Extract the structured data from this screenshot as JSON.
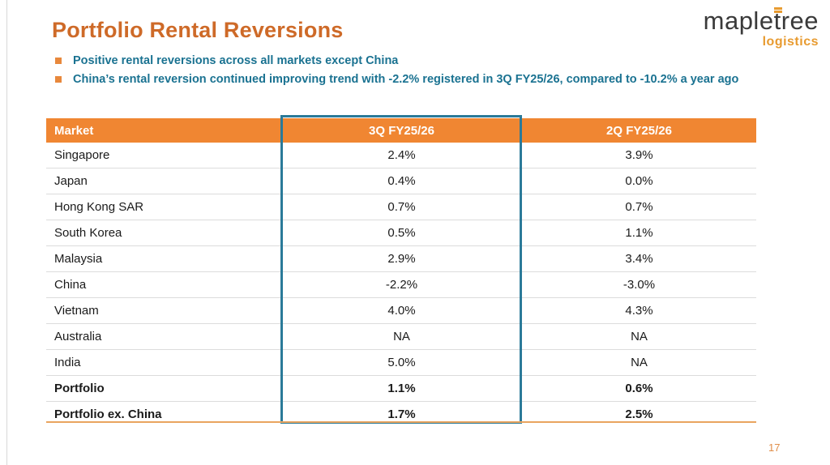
{
  "slide": {
    "title": "Portfolio Rental Reversions",
    "bullets": [
      "Positive rental reversions across all markets except China",
      "China’s rental reversion continued improving trend with -2.2% registered in 3Q FY25/26, compared to -10.2% a year ago"
    ],
    "page_number": "17"
  },
  "logo": {
    "part1": "maple",
    "part2": "t",
    "part3": "ree",
    "sub": "logistics"
  },
  "table": {
    "columns": [
      "Market",
      "3Q FY25/26",
      "2Q FY25/26"
    ],
    "rows": [
      {
        "market": "Singapore",
        "q3": "2.4%",
        "q2": "3.9%",
        "bold": false
      },
      {
        "market": "Japan",
        "q3": "0.4%",
        "q2": "0.0%",
        "bold": false
      },
      {
        "market": "Hong Kong SAR",
        "q3": "0.7%",
        "q2": "0.7%",
        "bold": false
      },
      {
        "market": "South Korea",
        "q3": "0.5%",
        "q2": "1.1%",
        "bold": false
      },
      {
        "market": "Malaysia",
        "q3": "2.9%",
        "q2": "3.4%",
        "bold": false
      },
      {
        "market": "China",
        "q3": "-2.2%",
        "q2": "-3.0%",
        "bold": false
      },
      {
        "market": "Vietnam",
        "q3": "4.0%",
        "q2": "4.3%",
        "bold": false
      },
      {
        "market": "Australia",
        "q3": "NA",
        "q2": "NA",
        "bold": false
      },
      {
        "market": "India",
        "q3": "5.0%",
        "q2": "NA",
        "bold": false
      },
      {
        "market": "Portfolio",
        "q3": "1.1%",
        "q2": "0.6%",
        "bold": true
      },
      {
        "market": "Portfolio ex. China",
        "q3": "1.7%",
        "q2": "2.5%",
        "bold": true
      }
    ]
  },
  "colors": {
    "title_orange": "#ce6a28",
    "header_orange": "#f08632",
    "bullet_square_orange": "#e8883c",
    "bullet_text_teal": "#1a7291",
    "highlight_border_teal": "#2b7a99",
    "bottom_rule_orange": "#e9a45f",
    "logo_orange": "#e89b30",
    "logo_dark": "#3a3a3a",
    "row_separator_gray": "#dcdcdc"
  }
}
